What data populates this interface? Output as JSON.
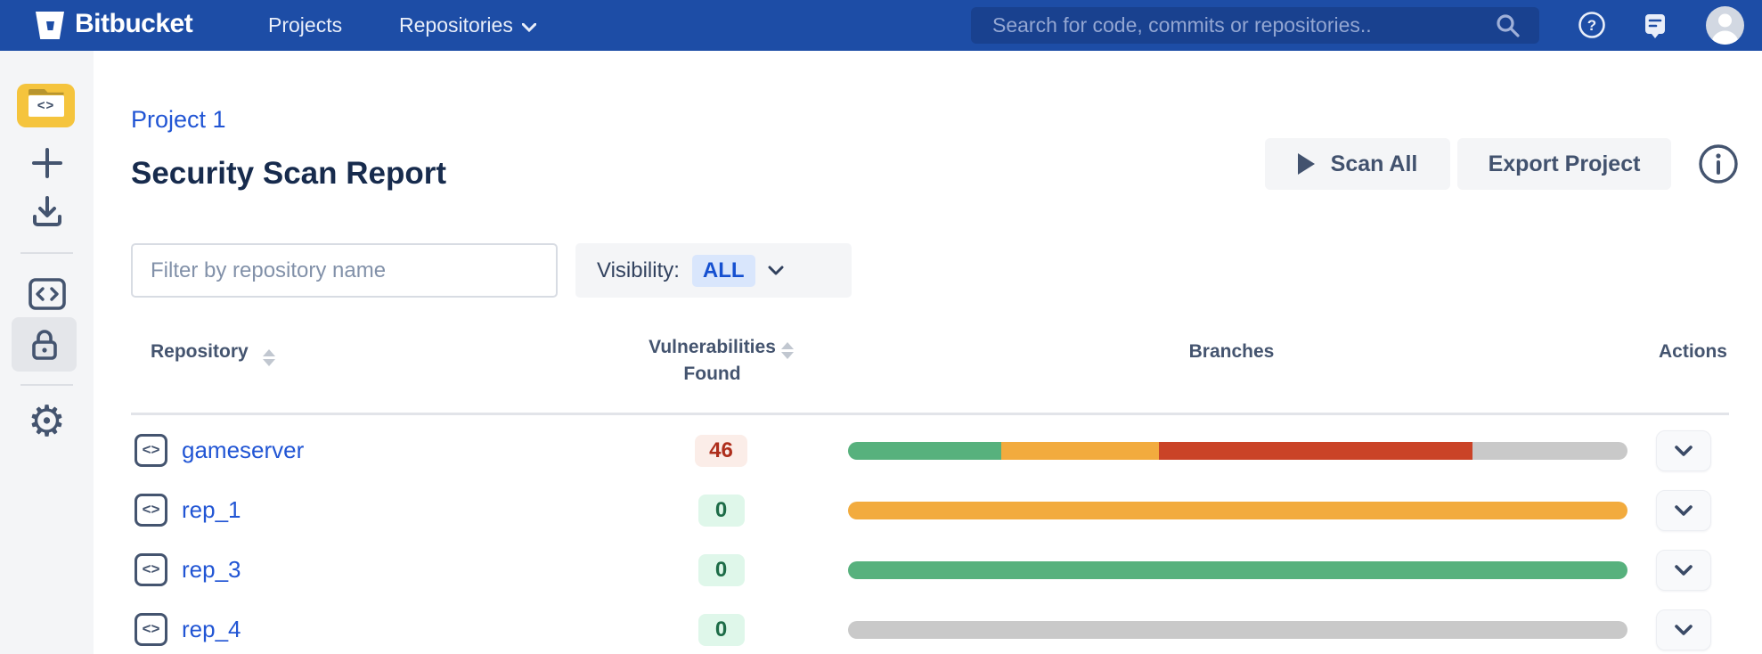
{
  "navbar": {
    "brand": "Bitbucket",
    "menu": {
      "projects": "Projects",
      "repositories": "Repositories"
    },
    "search_placeholder": "Search for code, commits or repositories..",
    "icons": [
      "search-icon",
      "help-icon",
      "feedback-icon",
      "avatar"
    ]
  },
  "sidebar": {
    "items": [
      "project-avatar",
      "create",
      "clone",
      "source",
      "security (selected)",
      "settings"
    ]
  },
  "page": {
    "breadcrumb": "Project 1",
    "title": "Security Scan Report",
    "actions": {
      "scan_all": "Scan All",
      "export_project": "Export Project",
      "info": "info-icon"
    }
  },
  "filters": {
    "filter_placeholder": "Filter by repository name",
    "visibility_label": "Visibility:",
    "visibility_value": "ALL"
  },
  "table": {
    "headers": {
      "repository": "Repository",
      "vulnerabilities_line1": "Vulnerabilities",
      "vulnerabilities_line2": "Found",
      "branches": "Branches",
      "actions": "Actions"
    },
    "rows": [
      {
        "name": "gameserver",
        "vulnerabilities": "46",
        "tone": "danger",
        "segments": [
          {
            "color_key": "green",
            "pct": 19.7
          },
          {
            "color_key": "orange",
            "pct": 20.2
          },
          {
            "color_key": "red",
            "pct": 40.2
          },
          {
            "color_key": "gray",
            "pct": 19.9
          }
        ]
      },
      {
        "name": "rep_1",
        "vulnerabilities": "0",
        "tone": "success",
        "segments": [
          {
            "color_key": "orange",
            "pct": 100
          }
        ]
      },
      {
        "name": "rep_3",
        "vulnerabilities": "0",
        "tone": "success",
        "segments": [
          {
            "color_key": "green",
            "pct": 100
          }
        ]
      },
      {
        "name": "rep_4",
        "vulnerabilities": "0",
        "tone": "success",
        "segments": [
          {
            "color_key": "gray",
            "pct": 100
          }
        ]
      }
    ]
  },
  "colors": {
    "navbar_bg": "#1D4DA6",
    "search_bg": "#19418F",
    "sidebar_bg": "#F4F5F7",
    "link_blue": "#2155D4",
    "title_text": "#172B4D",
    "badge_danger_bg": "#FBEDE8",
    "badge_danger_text": "#AE2E1C",
    "badge_success_bg": "#DFF7EA",
    "badge_success_text": "#1E6C48",
    "segments": {
      "green": "#57B17D",
      "orange": "#F2AB3E",
      "red": "#CA4327",
      "gray": "#C9C9C9"
    }
  }
}
